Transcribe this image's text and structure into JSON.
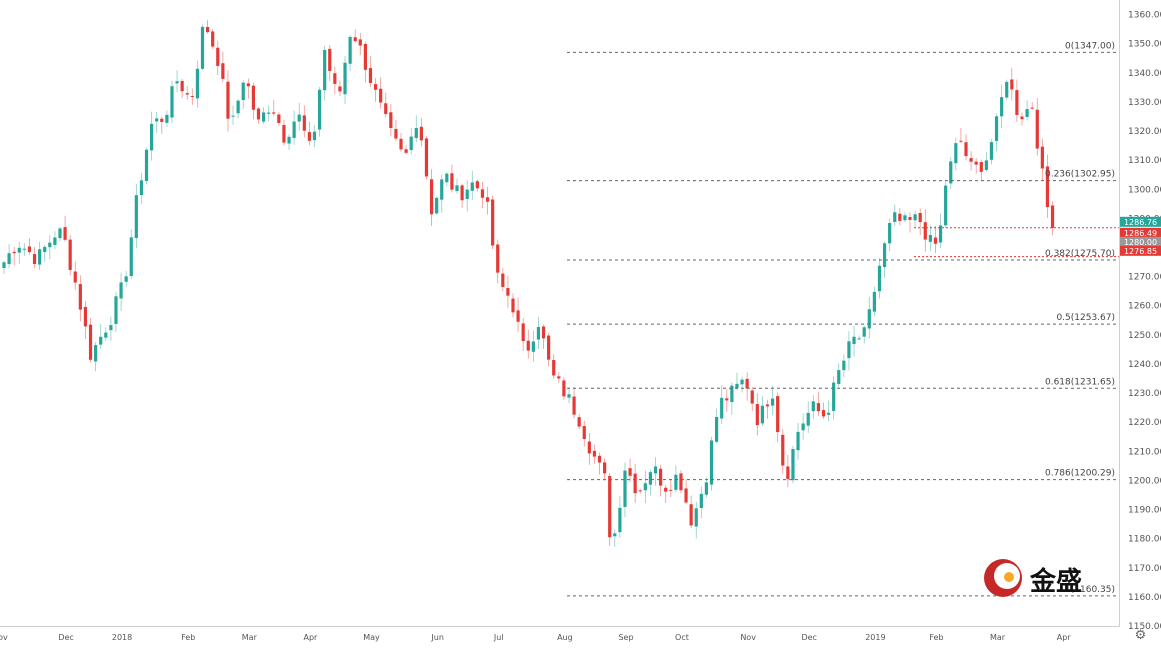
{
  "chart_data": {
    "type": "candlestick",
    "title": "",
    "ylim": [
      1150,
      1365
    ],
    "y_ticks": [
      1150,
      1160,
      1170,
      1180,
      1190,
      1200,
      1210,
      1220,
      1230,
      1240,
      1250,
      1260,
      1270,
      1280,
      1290,
      1300,
      1310,
      1320,
      1330,
      1340,
      1350,
      1360
    ],
    "x_labels": [
      "Nov",
      "Dec",
      "2018",
      "Feb",
      "Mar",
      "Apr",
      "May",
      "Jun",
      "Jul",
      "Aug",
      "Sep",
      "Oct",
      "Nov",
      "Dec",
      "2019",
      "Feb",
      "Mar",
      "Apr"
    ],
    "grid": false,
    "price_path": [
      [
        0,
        1275
      ],
      [
        2,
        1282
      ],
      [
        5,
        1276
      ],
      [
        8,
        1286
      ],
      [
        9,
        1283
      ],
      [
        11,
        1265
      ],
      [
        13,
        1243
      ],
      [
        16,
        1256
      ],
      [
        18,
        1268
      ],
      [
        20,
        1298
      ],
      [
        22,
        1322
      ],
      [
        24,
        1325
      ],
      [
        26,
        1338
      ],
      [
        28,
        1330
      ],
      [
        30,
        1358
      ],
      [
        32,
        1345
      ],
      [
        34,
        1320
      ],
      [
        36,
        1340
      ],
      [
        38,
        1322
      ],
      [
        40,
        1330
      ],
      [
        42,
        1318
      ],
      [
        44,
        1326
      ],
      [
        46,
        1312
      ],
      [
        48,
        1348
      ],
      [
        50,
        1330
      ],
      [
        52,
        1356
      ],
      [
        54,
        1344
      ],
      [
        56,
        1330
      ],
      [
        58,
        1318
      ],
      [
        60,
        1310
      ],
      [
        62,
        1326
      ],
      [
        64,
        1293
      ],
      [
        66,
        1305
      ],
      [
        68,
        1298
      ],
      [
        70,
        1302
      ],
      [
        72,
        1299
      ],
      [
        74,
        1268
      ],
      [
        76,
        1262
      ],
      [
        78,
        1243
      ],
      [
        80,
        1255
      ],
      [
        82,
        1236
      ],
      [
        84,
        1230
      ],
      [
        86,
        1222
      ],
      [
        88,
        1210
      ],
      [
        90,
        1200
      ],
      [
        91,
        1175
      ],
      [
        93,
        1205
      ],
      [
        95,
        1196
      ],
      [
        97,
        1205
      ],
      [
        99,
        1198
      ],
      [
        101,
        1202
      ],
      [
        103,
        1186
      ],
      [
        105,
        1200
      ],
      [
        107,
        1226
      ],
      [
        109,
        1230
      ],
      [
        111,
        1235
      ],
      [
        113,
        1220
      ],
      [
        115,
        1232
      ],
      [
        117,
        1200
      ],
      [
        119,
        1218
      ],
      [
        121,
        1225
      ],
      [
        123,
        1222
      ],
      [
        125,
        1237
      ],
      [
        127,
        1248
      ],
      [
        129,
        1250
      ],
      [
        131,
        1273
      ],
      [
        133,
        1290
      ],
      [
        135,
        1288
      ],
      [
        137,
        1290
      ],
      [
        139,
        1280
      ],
      [
        140,
        1282
      ],
      [
        141,
        1302
      ],
      [
        143,
        1318
      ],
      [
        145,
        1306
      ],
      [
        147,
        1310
      ],
      [
        149,
        1325
      ],
      [
        150,
        1340
      ],
      [
        152,
        1325
      ],
      [
        154,
        1329
      ],
      [
        155,
        1312
      ],
      [
        156,
        1296
      ],
      [
        157,
        1286.76
      ]
    ]
  },
  "axis": {
    "price_labels": [
      "1150.00",
      "1160.00",
      "1170.00",
      "1180.00",
      "1190.00",
      "1200.00",
      "1210.00",
      "1220.00",
      "1230.00",
      "1240.00",
      "1250.00",
      "1260.00",
      "1270.00",
      "1280.00",
      "1290.00",
      "1300.00",
      "1310.00",
      "1320.00",
      "1330.00",
      "1340.00",
      "1350.00",
      "1360.00"
    ]
  },
  "fibonacci": {
    "levels": [
      {
        "ratio": "0",
        "price": 1347.0,
        "label": "0(1347.00)"
      },
      {
        "ratio": "0.236",
        "price": 1302.95,
        "label": "0.236(1302.95)"
      },
      {
        "ratio": "0.382",
        "price": 1275.7,
        "label": "0.382(1275.70)"
      },
      {
        "ratio": "0.5",
        "price": 1253.67,
        "label": "0.5(1253.67)"
      },
      {
        "ratio": "0.618",
        "price": 1231.65,
        "label": "0.618(1231.65)"
      },
      {
        "ratio": "0.786",
        "price": 1200.29,
        "label": "0.786(1200.29)"
      },
      {
        "ratio": "1",
        "price": 1160.35,
        "label": "1(1160.35)"
      }
    ]
  },
  "price_markers": [
    {
      "value": 1286.76,
      "label": "1286.76",
      "color": "#26a69a"
    },
    {
      "value": 1286.49,
      "label": "1286.49",
      "color": "#e53935"
    },
    {
      "value": 1280.0,
      "label": "1280.00",
      "color": "#999999"
    },
    {
      "value": 1276.85,
      "label": "1276.85",
      "color": "#e53935"
    }
  ],
  "horizontal_lines": [
    {
      "value": 1286.76,
      "color": "#e53935"
    },
    {
      "value": 1276.85,
      "color": "#e53935"
    }
  ],
  "colors": {
    "up": "#26a69a",
    "down": "#e53935",
    "fib": "#666666",
    "axis_text": "#555555"
  },
  "logo": {
    "text": "金盛",
    "icon": "jinsheng-logo-icon"
  },
  "settings": {
    "icon": "gear-icon",
    "glyph": "⚙"
  }
}
